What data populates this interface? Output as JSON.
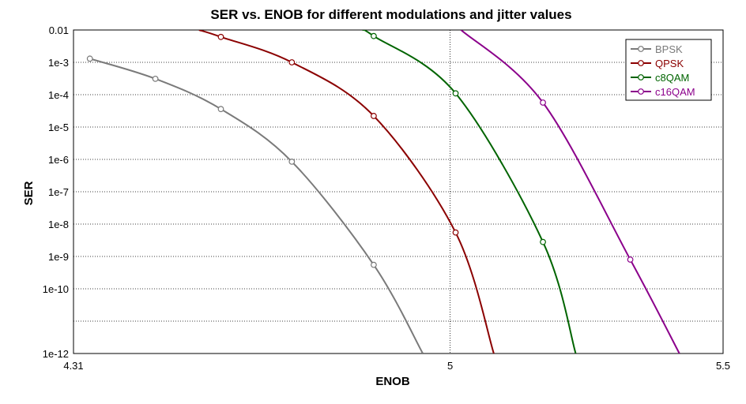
{
  "chart_data": {
    "type": "line",
    "title": "SER vs. ENOB for different modulations and jitter values",
    "xlabel": "ENOB",
    "ylabel": "SER",
    "xlim": [
      4.31,
      5.5
    ],
    "ylim_log10": [
      -12,
      -2
    ],
    "y_scale": "log",
    "grid": "dotted",
    "legend_position": "top-right",
    "x_ticks": [
      {
        "value": 4.31,
        "label": "4.31"
      },
      {
        "value": 5.0,
        "label": "5"
      },
      {
        "value": 5.5,
        "label": "5.5"
      }
    ],
    "y_ticks": [
      {
        "exp": -2,
        "label": "0.01"
      },
      {
        "exp": -3,
        "label": "1e-3"
      },
      {
        "exp": -4,
        "label": "1e-4"
      },
      {
        "exp": -5,
        "label": "1e-5"
      },
      {
        "exp": -6,
        "label": "1e-6"
      },
      {
        "exp": -7,
        "label": "1e-7"
      },
      {
        "exp": -8,
        "label": "1e-8"
      },
      {
        "exp": -9,
        "label": "1e-9"
      },
      {
        "exp": -10,
        "label": "1e-10"
      },
      {
        "exp": -11,
        "label": ""
      },
      {
        "exp": -12,
        "label": "1e-12"
      }
    ],
    "series": [
      {
        "name": "BPSK",
        "color": "#7a7a7a",
        "points": [
          [
            4.34,
            0.0013
          ],
          [
            4.46,
            0.00031
          ],
          [
            4.58,
            3.6e-05
          ],
          [
            4.71,
            8.5e-07
          ],
          [
            4.86,
            5.5e-10
          ]
        ],
        "curve_end": [
          4.95,
          1e-12
        ]
      },
      {
        "name": "QPSK",
        "color": "#8b0000",
        "points": [
          [
            4.58,
            0.0061
          ],
          [
            4.71,
            0.001
          ],
          [
            4.86,
            2.2e-05
          ],
          [
            5.01,
            5.5e-09
          ]
        ],
        "curve_start": [
          4.54,
          0.01
        ],
        "curve_end": [
          5.08,
          1e-12
        ]
      },
      {
        "name": "c8QAM",
        "color": "#006400",
        "points": [
          [
            4.86,
            0.0065
          ],
          [
            5.01,
            0.00011
          ],
          [
            5.17,
            2.8e-09
          ]
        ],
        "curve_start": [
          4.84,
          0.01
        ],
        "curve_end": [
          5.23,
          1e-12
        ]
      },
      {
        "name": "c16QAM",
        "color": "#8b008b",
        "points": [
          [
            5.17,
            5.7e-05
          ],
          [
            5.33,
            8e-10
          ]
        ],
        "curve_start": [
          5.02,
          0.01
        ],
        "curve_end": [
          5.42,
          1e-12
        ]
      }
    ]
  }
}
